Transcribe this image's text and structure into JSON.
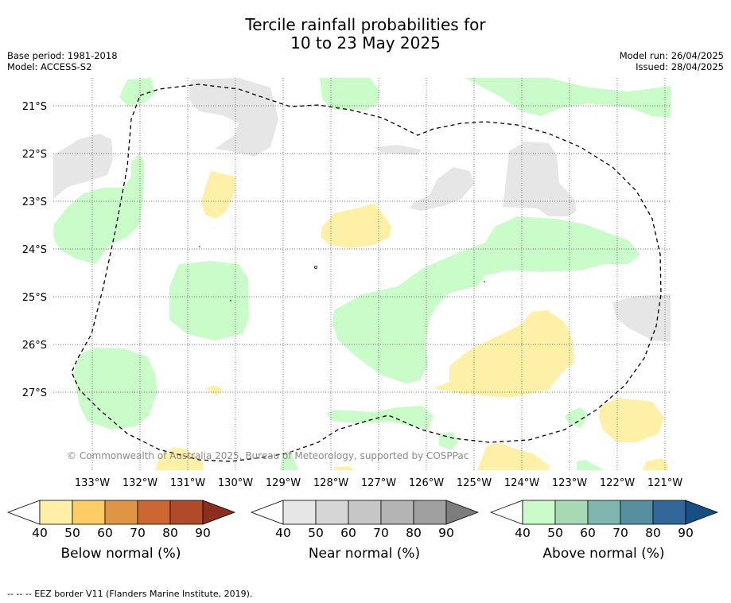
{
  "title_line1": "Tercile rainfall probabilities for",
  "title_line2": "10 to 23 May 2025",
  "base_period": "Base period: 1981-2018",
  "model": "Model: ACCESS-S2",
  "model_run": "Model run: 26/04/2025",
  "issued": "Issued: 28/04/2025",
  "copyright": "© Commonwealth of Australia 2025, Bureau of Meteorology, supported by COSPPac",
  "footer": "--  --  -- EEZ border V11 (Flanders Marine Institute, 2019).",
  "x_ticks": [
    "133°W",
    "132°W",
    "131°W",
    "130°W",
    "129°W",
    "128°W",
    "127°W",
    "126°W",
    "125°W",
    "124°W",
    "123°W",
    "122°W",
    "121°W"
  ],
  "y_ticks": [
    "21°S",
    "22°S",
    "23°S",
    "24°S",
    "25°S",
    "26°S",
    "27°S"
  ],
  "colorbars": [
    {
      "label": "Below normal (%)",
      "ticks": [
        "40",
        "50",
        "60",
        "70",
        "80",
        "90"
      ],
      "colors": [
        "#fff0a8",
        "#ffcc66",
        "#e09545",
        "#cc6633",
        "#b04a28",
        "#8c2e1e"
      ]
    },
    {
      "label": "Near normal (%)",
      "ticks": [
        "40",
        "50",
        "60",
        "70",
        "80",
        "90"
      ],
      "colors": [
        "#e6e6e6",
        "#d6d6d6",
        "#c6c6c6",
        "#b4b4b4",
        "#a0a0a0",
        "#7d7d7d"
      ]
    },
    {
      "label": "Above normal (%)",
      "ticks": [
        "40",
        "50",
        "60",
        "70",
        "80",
        "90"
      ],
      "colors": [
        "#c9fcc9",
        "#a6d9b4",
        "#80b5b0",
        "#5690a0",
        "#336699",
        "#174f85"
      ]
    }
  ],
  "colors": {
    "below": "#fff0a8",
    "near": "#e6e6e6",
    "above": "#c9fcc9"
  }
}
